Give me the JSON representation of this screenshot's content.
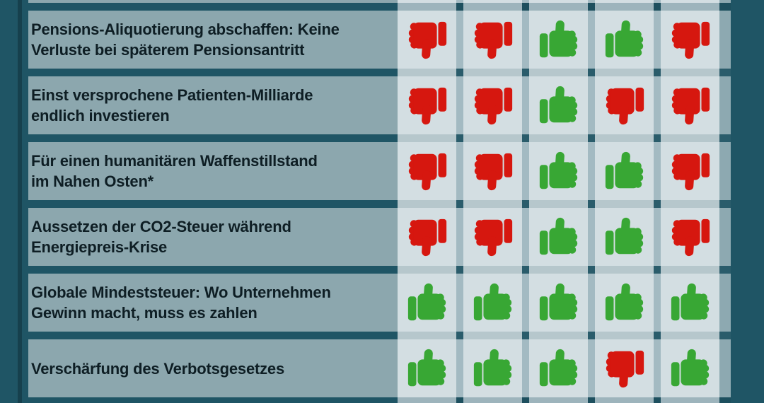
{
  "title": "Abstimmungsverhalten-Tabelle (Ausschnitt)",
  "colors": {
    "background": "#1f5565",
    "divider": "#16404d",
    "topic_cell": "#8ca7ae",
    "vote_cell": "#d3dee2",
    "column_gap": "#a3bac2",
    "row_gap": "#b6c7cc",
    "outer_band": "#9db4bc",
    "intersection": "#2a5c6b",
    "outer_intersection": "#1d4f5e",
    "edge_strip": "#8da9b1",
    "thumb_up": "#38a734",
    "thumb_down": "#d6170f",
    "text": "#0e1e24"
  },
  "table": {
    "vote_columns": 5,
    "rows": [
      {
        "topic_lines": [
          "Pensions-Aliquotierung abschaffen: Keine",
          "Verluste bei späterem Pensionsantritt"
        ],
        "votes": [
          "down",
          "down",
          "up",
          "up",
          "down"
        ]
      },
      {
        "topic_lines": [
          "Einst versprochene Patienten-Milliarde",
          "endlich investieren"
        ],
        "votes": [
          "down",
          "down",
          "up",
          "down",
          "down"
        ]
      },
      {
        "topic_lines": [
          "Für einen humanitären Waffenstillstand",
          "im Nahen Osten*"
        ],
        "votes": [
          "down",
          "down",
          "up",
          "up",
          "down"
        ]
      },
      {
        "topic_lines": [
          "Aussetzen der CO2-Steuer während",
          "Energiepreis-Krise"
        ],
        "votes": [
          "down",
          "down",
          "up",
          "up",
          "down"
        ]
      },
      {
        "topic_lines": [
          "Globale Mindeststeuer: Wo Unternehmen",
          "Gewinn macht, muss es zahlen"
        ],
        "votes": [
          "up",
          "up",
          "up",
          "up",
          "up"
        ]
      },
      {
        "topic_lines": [
          "Verschärfung des Verbotsgesetzes"
        ],
        "votes": [
          "up",
          "up",
          "up",
          "down",
          "up"
        ]
      }
    ]
  }
}
